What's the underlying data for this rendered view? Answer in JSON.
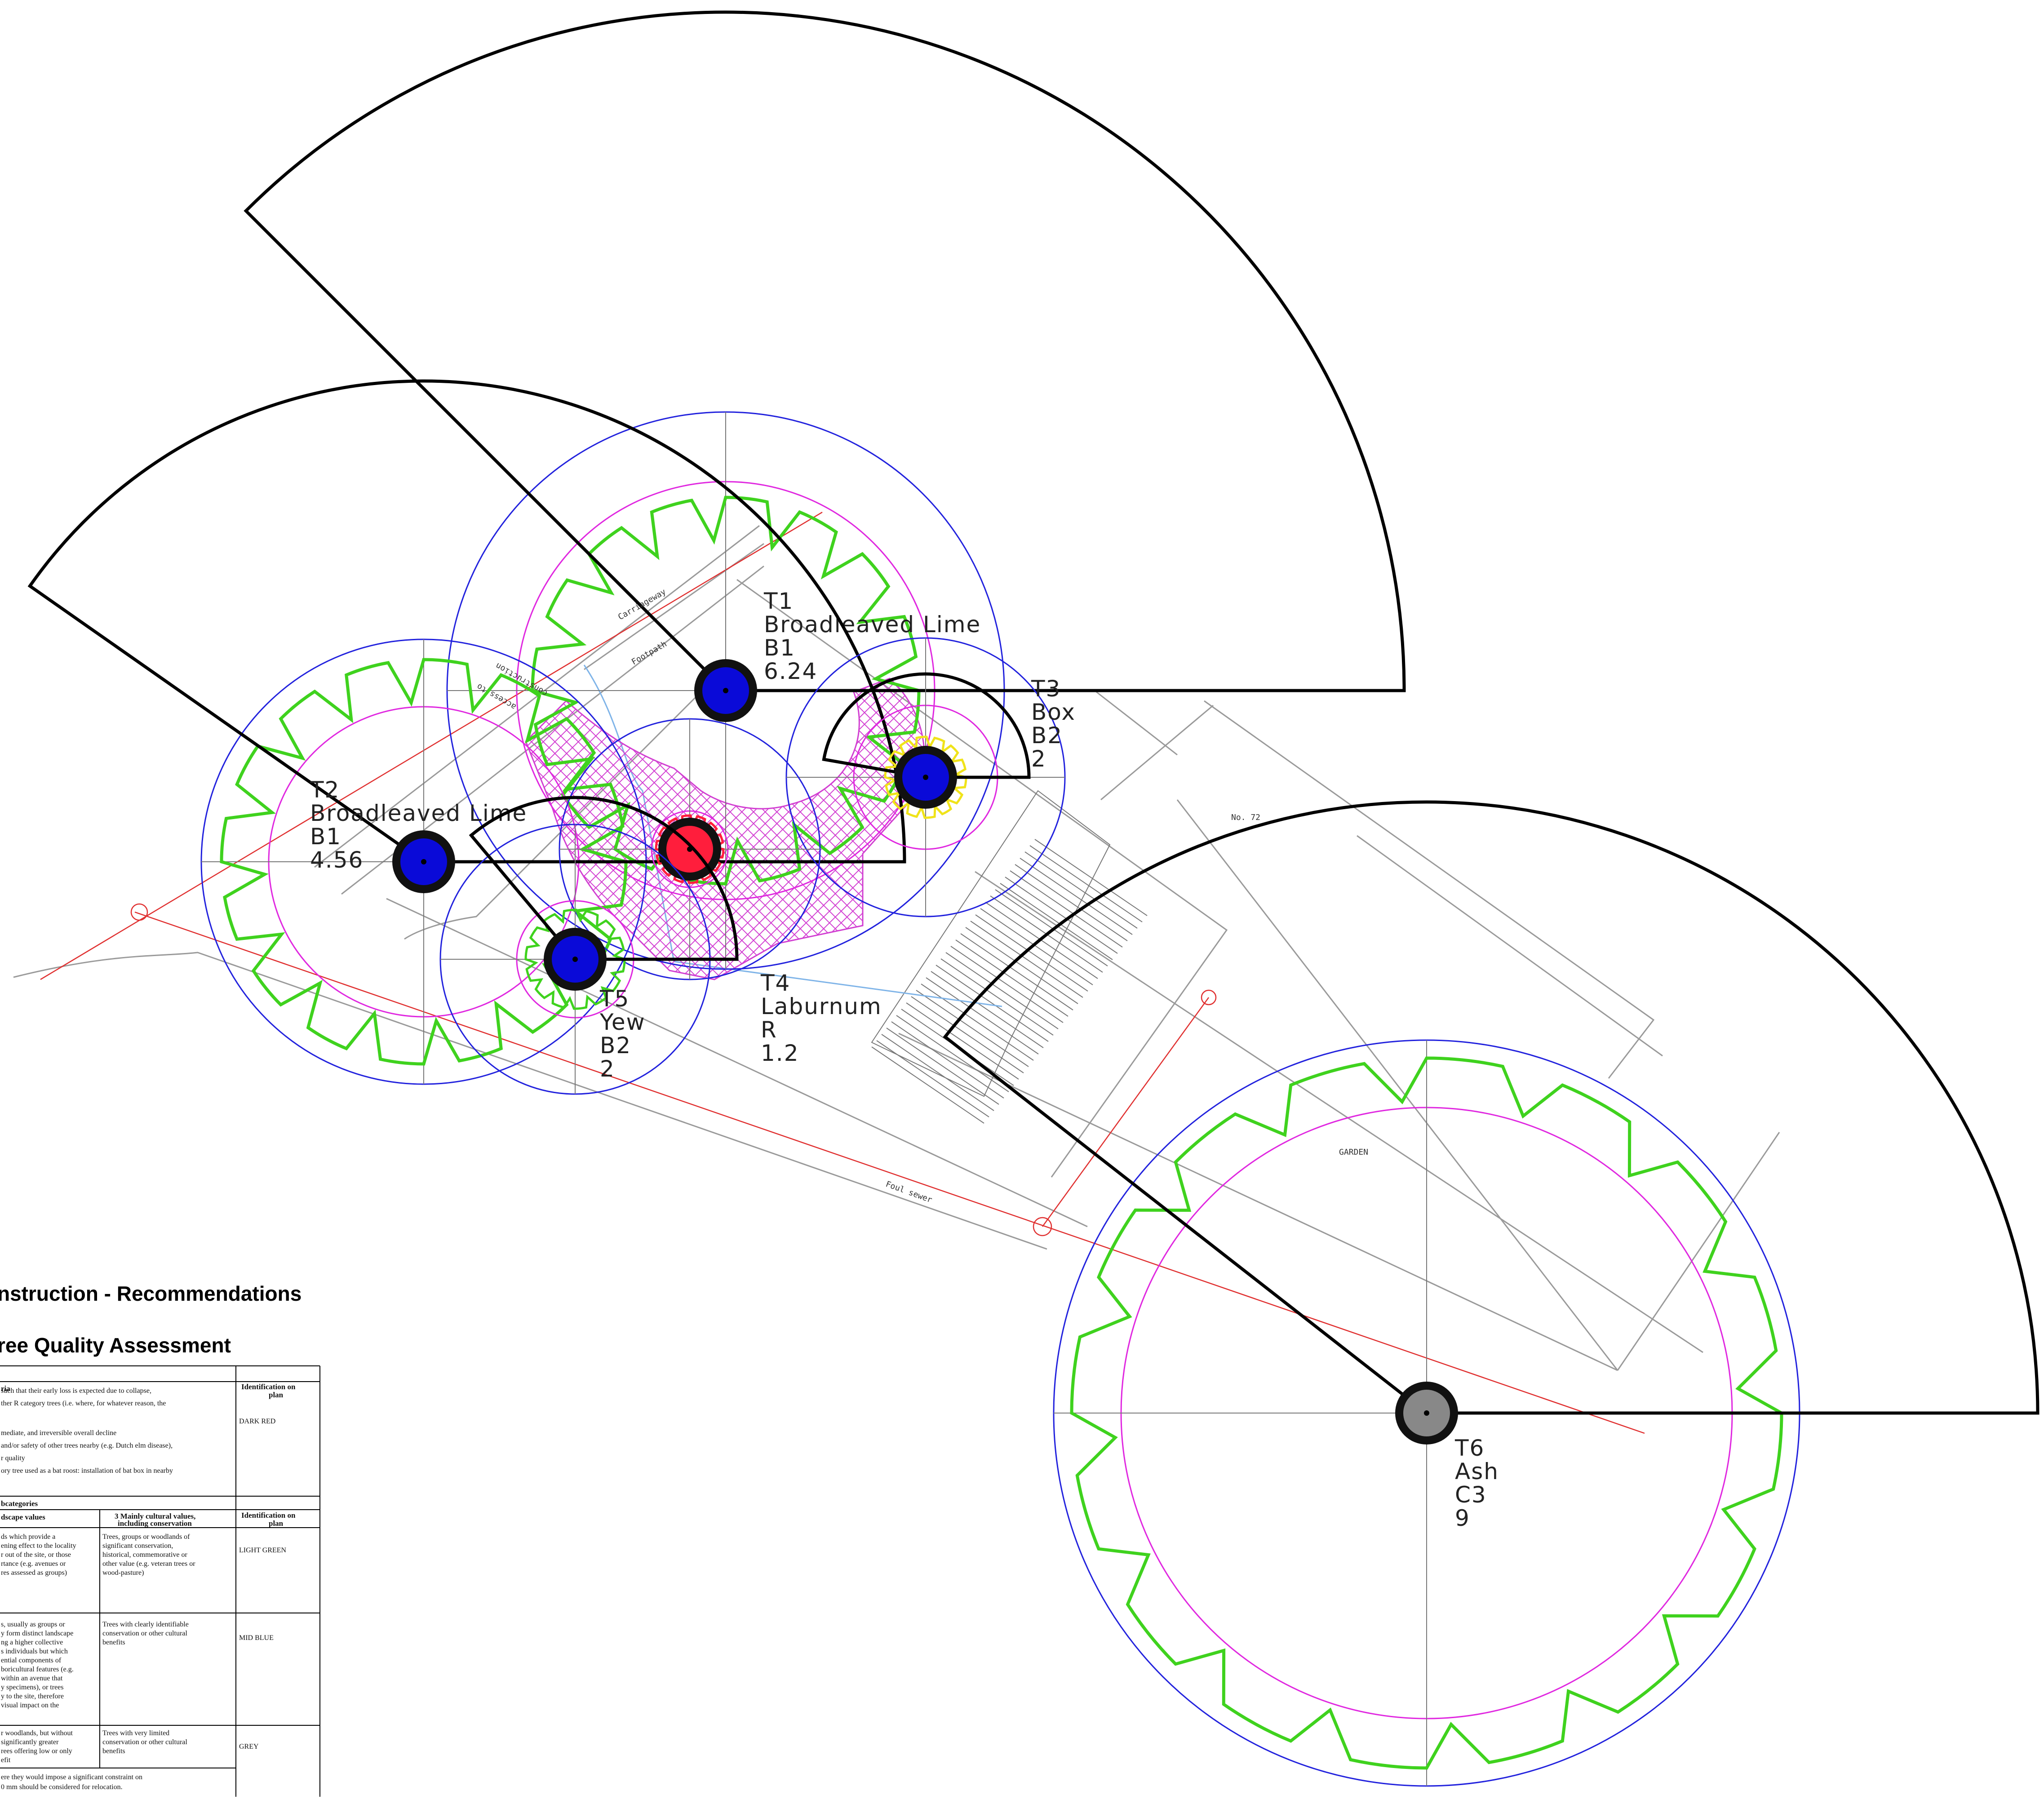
{
  "headings": {
    "recommendations": "nstruction - Recommendations",
    "assessment": "ree Quality Assessment"
  },
  "trees": [
    {
      "id": "T1",
      "species": "Broadleaved Lime",
      "category": "B1",
      "value": "6.24",
      "stem_color": "#0a0ad8"
    },
    {
      "id": "T2",
      "species": "Broadleaved Lime",
      "category": "B1",
      "value": "4.56",
      "stem_color": "#0a0ad8"
    },
    {
      "id": "T3",
      "species": "Box",
      "category": "B2",
      "value": "2",
      "stem_color": "#0a0ad8"
    },
    {
      "id": "T4",
      "species": "Laburnum",
      "category": "R",
      "value": "1.2",
      "stem_color": "#ff1e3c"
    },
    {
      "id": "T5",
      "species": "Yew",
      "category": "B2",
      "value": "2",
      "stem_color": "#0a0ad8"
    },
    {
      "id": "T6",
      "species": "Ash",
      "category": "C3",
      "value": "9",
      "stem_color": "#888888"
    }
  ],
  "site_labels": {
    "carriageway": "Carriageway",
    "footpath": "Footpath",
    "access": "access to",
    "construction": "construction",
    "no72": "No. 72",
    "garden": "GARDEN",
    "foul_sewer": "Foul sewer"
  },
  "table": {
    "r_header": {
      "criteria": "ria",
      "id": "Identification on plan"
    },
    "r_lines": [
      "such that their early loss is expected due to collapse,",
      "ther R category trees (i.e. where, for whatever reason, the",
      "",
      "mediate, and irreversible overall decline",
      "and/or safety of other trees nearby (e.g. Dutch elm disease),",
      "r quality",
      "ory tree used as a bat roost: installation of bat box in nearby"
    ],
    "r_id": "DARK RED",
    "sub_header": {
      "subcategories": "bcategories",
      "col2": "dscape values",
      "col3": "3 Mainly cultural values, including conservation",
      "id": "Identification on plan"
    },
    "rows": [
      {
        "col2": [
          "ds which provide a",
          "ening effect to the locality",
          "r out of the site, or those",
          "rtance (e.g. avenues or",
          "res assessed as groups)"
        ],
        "col3": [
          "Trees, groups or woodlands of",
          "significant conservation,",
          "historical, commemorative or",
          "other value (e.g. veteran trees or",
          "wood-pasture)"
        ],
        "id": "LIGHT GREEN"
      },
      {
        "col2": [
          "s, usually as groups or",
          "y form distinct landscape",
          "ng a higher collective",
          "s individuals but which",
          "ential components of",
          "boricultural features (e.g.",
          "within an avenue that",
          "y specimens), or trees",
          "y to the site, therefore",
          "visual impact on the"
        ],
        "col3": [
          "Trees with clearly identifiable",
          "conservation or other cultural",
          "benefits"
        ],
        "id": "MID BLUE"
      },
      {
        "col2": [
          "r woodlands, but without",
          "significantly greater",
          "rees offering low or only",
          "efit"
        ],
        "col3": [
          "Trees with very limited",
          "conservation or other cultural",
          "benefits"
        ],
        "id": "GREY"
      }
    ],
    "footer_lines": [
      "ere they would impose a significant constraint on",
      "0 mm should be considered for relocation."
    ]
  }
}
